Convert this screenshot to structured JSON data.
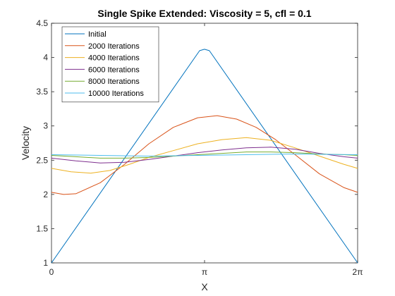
{
  "chart_data": {
    "type": "line",
    "title": "Single Spike Extended: Viscosity = 5, cfl = 0.1",
    "xlabel": "X",
    "ylabel": "Velocity",
    "xlim": [
      0,
      6.2832
    ],
    "ylim": [
      1,
      4.5
    ],
    "xticks": [
      {
        "value": 0,
        "label": "0"
      },
      {
        "value": 3.1416,
        "label": "π"
      },
      {
        "value": 6.2832,
        "label": "2π"
      }
    ],
    "yticks": [
      {
        "value": 1,
        "label": "1"
      },
      {
        "value": 1.5,
        "label": "1.5"
      },
      {
        "value": 2,
        "label": "2"
      },
      {
        "value": 2.5,
        "label": "2.5"
      },
      {
        "value": 3,
        "label": "3"
      },
      {
        "value": 3.5,
        "label": "3.5"
      },
      {
        "value": 4,
        "label": "4"
      },
      {
        "value": 4.5,
        "label": "4.5"
      }
    ],
    "grid": false,
    "legend_position": "top-left",
    "series": [
      {
        "name": "Initial",
        "color": "#0072BD",
        "points": [
          [
            0,
            1.0
          ],
          [
            3.04,
            4.1
          ],
          [
            3.14,
            4.12
          ],
          [
            3.24,
            4.1
          ],
          [
            6.2832,
            1.0
          ]
        ]
      },
      {
        "name": "2000 Iterations",
        "color": "#D95319",
        "points": [
          [
            0,
            2.03
          ],
          [
            0.25,
            2.0
          ],
          [
            0.5,
            2.01
          ],
          [
            1.0,
            2.17
          ],
          [
            1.5,
            2.44
          ],
          [
            2.0,
            2.74
          ],
          [
            2.5,
            2.98
          ],
          [
            3.0,
            3.12
          ],
          [
            3.4,
            3.15
          ],
          [
            3.8,
            3.1
          ],
          [
            4.2,
            2.98
          ],
          [
            4.6,
            2.8
          ],
          [
            5.0,
            2.58
          ],
          [
            5.5,
            2.3
          ],
          [
            6.0,
            2.1
          ],
          [
            6.2832,
            2.03
          ]
        ]
      },
      {
        "name": "4000 Iterations",
        "color": "#EDB120",
        "points": [
          [
            0,
            2.38
          ],
          [
            0.4,
            2.33
          ],
          [
            0.8,
            2.31
          ],
          [
            1.2,
            2.35
          ],
          [
            1.6,
            2.44
          ],
          [
            2.0,
            2.54
          ],
          [
            2.5,
            2.64
          ],
          [
            3.0,
            2.74
          ],
          [
            3.5,
            2.8
          ],
          [
            4.0,
            2.83
          ],
          [
            4.5,
            2.79
          ],
          [
            5.0,
            2.68
          ],
          [
            5.5,
            2.56
          ],
          [
            6.0,
            2.44
          ],
          [
            6.2832,
            2.38
          ]
        ]
      },
      {
        "name": "6000 Iterations",
        "color": "#7E2F8E",
        "points": [
          [
            0,
            2.53
          ],
          [
            0.5,
            2.49
          ],
          [
            1.0,
            2.46
          ],
          [
            1.5,
            2.47
          ],
          [
            2.0,
            2.51
          ],
          [
            2.5,
            2.56
          ],
          [
            3.0,
            2.61
          ],
          [
            3.5,
            2.65
          ],
          [
            4.0,
            2.68
          ],
          [
            4.5,
            2.69
          ],
          [
            5.0,
            2.66
          ],
          [
            5.5,
            2.6
          ],
          [
            6.0,
            2.55
          ],
          [
            6.2832,
            2.53
          ]
        ]
      },
      {
        "name": "8000 Iterations",
        "color": "#77AC30",
        "points": [
          [
            0,
            2.57
          ],
          [
            0.5,
            2.55
          ],
          [
            1.0,
            2.53
          ],
          [
            1.5,
            2.53
          ],
          [
            2.0,
            2.54
          ],
          [
            2.5,
            2.56
          ],
          [
            3.0,
            2.58
          ],
          [
            3.5,
            2.6
          ],
          [
            4.0,
            2.62
          ],
          [
            4.5,
            2.62
          ],
          [
            5.0,
            2.61
          ],
          [
            5.5,
            2.59
          ],
          [
            6.0,
            2.58
          ],
          [
            6.2832,
            2.57
          ]
        ]
      },
      {
        "name": "10000 Iterations",
        "color": "#4DBEEE",
        "points": [
          [
            0,
            2.58
          ],
          [
            1.0,
            2.57
          ],
          [
            2.0,
            2.56
          ],
          [
            3.0,
            2.57
          ],
          [
            4.0,
            2.58
          ],
          [
            5.0,
            2.59
          ],
          [
            6.2832,
            2.58
          ]
        ]
      }
    ]
  }
}
